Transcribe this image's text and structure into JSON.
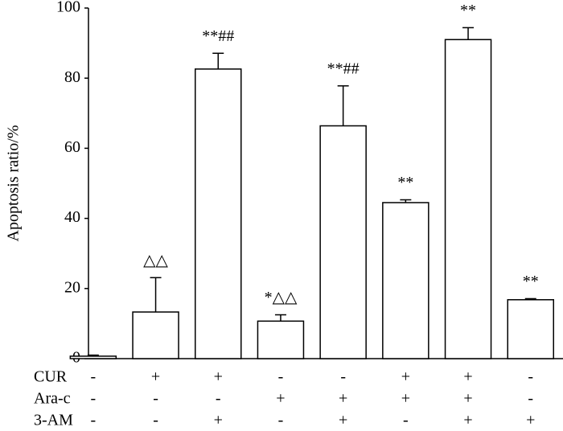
{
  "chart_data": {
    "type": "bar",
    "ylabel": "Apoptosis ratio/%",
    "values": [
      0.7,
      13.3,
      82.6,
      10.7,
      66.4,
      44.5,
      91.0,
      16.8
    ],
    "errors": [
      0.3,
      9.8,
      4.5,
      1.8,
      11.4,
      0.8,
      3.4,
      0.3
    ],
    "annotations": [
      null,
      "△△",
      "**##",
      "*△△",
      "**##",
      "**",
      "**",
      "**"
    ],
    "color": "#ffffff",
    "ylim": [
      0,
      100
    ],
    "yticks": [
      0,
      20,
      40,
      60,
      80,
      100
    ],
    "conditions": [
      {
        "label": "CUR",
        "values": [
          "-",
          "+",
          "+",
          "-",
          "-",
          "+",
          "+",
          "-"
        ]
      },
      {
        "label": "Ara-c",
        "values": [
          "-",
          "-",
          "-",
          "+",
          "+",
          "+",
          "+",
          "-"
        ]
      },
      {
        "label": "3-AM",
        "values": [
          "-",
          "-",
          "+",
          "-",
          "+",
          "-",
          "+",
          "+"
        ]
      }
    ]
  }
}
